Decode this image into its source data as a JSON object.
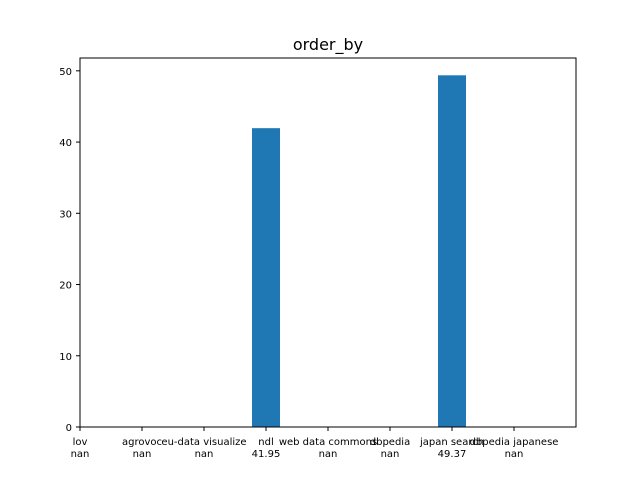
{
  "chart_data": {
    "type": "bar",
    "title": "order_by",
    "xlabel": "",
    "ylabel": "",
    "categories": [
      "lov",
      "agrovoc",
      "eu-data visualize",
      "ndl",
      "web data commons",
      "dbpedia",
      "japan search",
      "dbpedia japanese"
    ],
    "value_labels": [
      "nan",
      "nan",
      "nan",
      "41.95",
      "nan",
      "nan",
      "49.37",
      "nan"
    ],
    "values": [
      null,
      null,
      null,
      41.95,
      null,
      null,
      49.37,
      null
    ],
    "ylim": [
      0,
      51.8
    ],
    "yticks": [
      0,
      10,
      20,
      30,
      40,
      50
    ],
    "grid": false,
    "bar_color": "#1f77b4"
  }
}
